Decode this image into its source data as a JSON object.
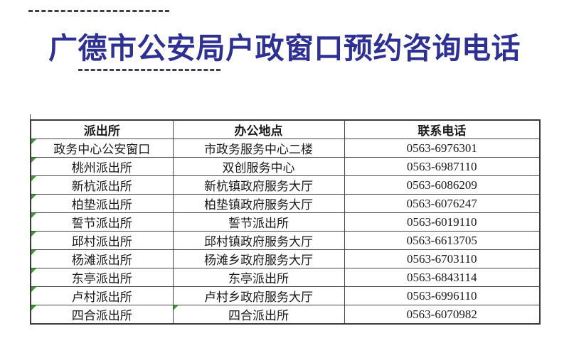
{
  "page": {
    "title": "广德市公安局户政窗口预约咨询电话"
  },
  "table": {
    "headers": [
      "派出所",
      "办公地点",
      "联系电话"
    ],
    "rows": [
      {
        "cells": [
          "政务中心公安窗口",
          "市政务服务中心二楼",
          "0563-6976301"
        ],
        "flags": [
          true,
          false,
          false
        ]
      },
      {
        "cells": [
          "桃州派出所",
          "双创服务中心",
          "0563-6987110"
        ],
        "flags": [
          true,
          false,
          false
        ]
      },
      {
        "cells": [
          "新杭派出所",
          "新杭镇政府服务大厅",
          "0563-6086209"
        ],
        "flags": [
          true,
          false,
          false
        ]
      },
      {
        "cells": [
          "柏垫派出所",
          "柏垫镇政府服务大厅",
          "0563-6076247"
        ],
        "flags": [
          true,
          false,
          false
        ]
      },
      {
        "cells": [
          "誓节派出所",
          "誓节派出所",
          "0563-6019110"
        ],
        "flags": [
          true,
          false,
          false
        ]
      },
      {
        "cells": [
          "邱村派出所",
          "邱村镇政府服务大厅",
          "0563-6613705"
        ],
        "flags": [
          true,
          false,
          false
        ]
      },
      {
        "cells": [
          "杨滩派出所",
          "杨滩乡政府服务大厅",
          "0563-6703110"
        ],
        "flags": [
          true,
          false,
          false
        ]
      },
      {
        "cells": [
          "东亭派出所",
          "东亭派出所",
          "0563-6843114"
        ],
        "flags": [
          true,
          false,
          false
        ]
      },
      {
        "cells": [
          "卢村派出所",
          "卢村乡政府服务大厅",
          "0563-6996110"
        ],
        "flags": [
          true,
          false,
          false
        ]
      },
      {
        "cells": [
          "四合派出所",
          "四合派出所",
          "0563-6070982"
        ],
        "flags": [
          true,
          true,
          false
        ]
      }
    ]
  },
  "colors": {
    "title_blue": "#2E3192",
    "flag_green": "#3F9B35",
    "dash_color": "#3D3E54",
    "border_dark": "#3A3A3A"
  }
}
